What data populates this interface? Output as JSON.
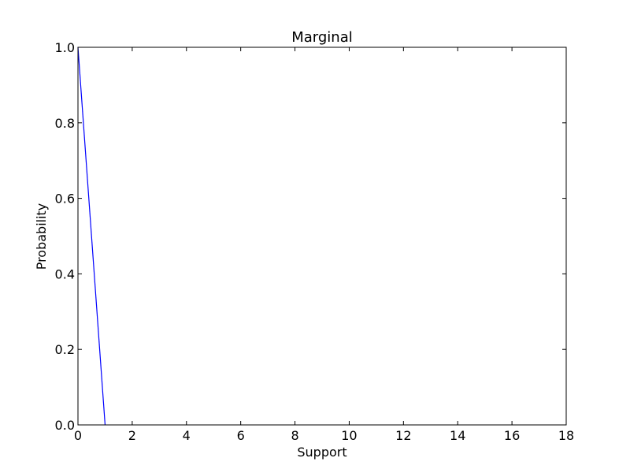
{
  "chart_data": {
    "type": "line",
    "title": "Marginal",
    "xlabel": "Support",
    "ylabel": "Probability",
    "xlim": [
      0,
      18
    ],
    "ylim": [
      0,
      1
    ],
    "xticks": [
      0,
      2,
      4,
      6,
      8,
      10,
      12,
      14,
      16,
      18
    ],
    "xtick_labels": [
      "0",
      "2",
      "4",
      "6",
      "8",
      "10",
      "12",
      "14",
      "16",
      "18"
    ],
    "yticks": [
      0,
      0.2,
      0.4,
      0.6,
      0.8,
      1.0
    ],
    "ytick_labels": [
      "0.0",
      "0.2",
      "0.4",
      "0.6",
      "0.8",
      "1.0"
    ],
    "grid": false,
    "series": [
      {
        "x": [
          0,
          1
        ],
        "y": [
          1.0,
          0.0
        ],
        "color": "#0000ff"
      }
    ]
  }
}
